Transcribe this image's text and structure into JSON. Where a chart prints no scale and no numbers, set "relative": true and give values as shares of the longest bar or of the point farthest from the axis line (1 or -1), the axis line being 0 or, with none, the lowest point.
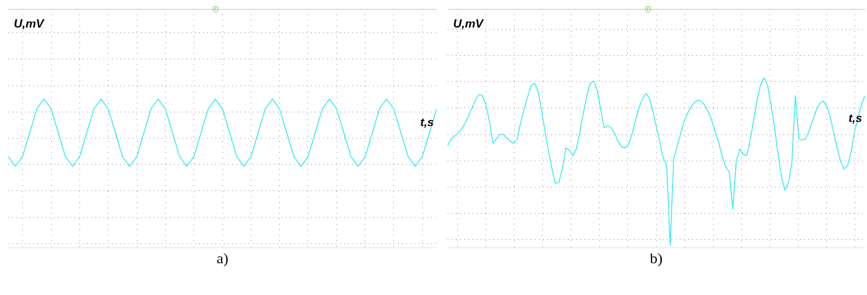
{
  "chart_data": [
    {
      "type": "line",
      "relative": true,
      "xlabel": "t,s",
      "ylabel": "U,mV",
      "annotations": [
        "a)"
      ],
      "grid": true,
      "legend": false,
      "marker": "none",
      "categories": [
        null,
        null,
        null,
        null,
        null,
        null,
        null,
        null,
        null,
        null,
        null,
        null,
        null,
        null,
        null,
        null,
        null,
        null,
        null,
        null,
        null,
        null,
        null,
        null,
        null,
        null,
        null,
        null,
        null,
        null,
        null,
        null,
        null,
        null,
        null,
        null,
        null,
        null,
        null,
        null,
        null,
        null,
        null,
        null,
        null,
        null,
        null,
        null,
        null,
        null,
        null,
        null,
        null,
        null,
        null,
        null,
        null,
        null,
        null,
        null,
        null
      ],
      "series": [
        {
          "color": "#33e8f2",
          "values": [
            -0.47,
            -0.72,
            -0.47,
            0.14,
            0.75,
            1,
            0.75,
            0.14,
            -0.47,
            -0.72,
            -0.47,
            0.14,
            0.75,
            1,
            0.75,
            0.14,
            -0.47,
            -0.72,
            -0.47,
            0.14,
            0.75,
            1,
            0.75,
            0.14,
            -0.47,
            -0.72,
            -0.47,
            0.14,
            0.75,
            1,
            0.75,
            0.14,
            -0.47,
            -0.72,
            -0.47,
            0.14,
            0.75,
            1,
            0.75,
            0.14,
            -0.47,
            -0.72,
            -0.47,
            0.14,
            0.75,
            1,
            0.75,
            0.14,
            -0.47,
            -0.72,
            -0.47,
            0.14,
            0.75,
            1,
            0.75,
            0.14,
            -0.47,
            -0.72,
            -0.47,
            0.14,
            0.75
          ]
        }
      ]
    },
    {
      "type": "line",
      "relative": true,
      "xlabel": "t,s",
      "ylabel": "U,mV",
      "annotations": [
        "b)"
      ],
      "grid": true,
      "legend": false,
      "marker": "none",
      "categories": [
        null,
        null,
        null,
        null,
        null,
        null,
        null,
        null,
        null,
        null,
        null,
        null,
        null,
        null,
        null,
        null,
        null,
        null,
        null,
        null,
        null,
        null,
        null,
        null,
        null,
        null,
        null,
        null,
        null,
        null,
        null,
        null,
        null,
        null,
        null,
        null,
        null,
        null,
        null,
        null,
        null,
        null,
        null,
        null,
        null,
        null,
        null,
        null,
        null,
        null,
        null,
        null,
        null,
        null,
        null,
        null,
        null,
        null,
        null,
        null,
        null,
        null,
        null,
        null,
        null,
        null,
        null,
        null,
        null,
        null,
        null,
        null,
        null,
        null,
        null,
        null,
        null,
        null,
        null,
        null,
        null,
        null,
        null,
        null,
        null,
        null,
        null,
        null,
        null,
        null,
        null,
        null,
        null,
        null,
        null,
        null,
        null,
        null,
        null,
        null,
        null,
        null,
        null,
        null,
        null,
        null,
        null,
        null,
        null,
        null,
        null,
        null,
        null,
        null,
        null,
        null,
        null,
        null,
        null,
        null,
        null
      ],
      "series": [
        {
          "color": "#33e8f2",
          "values": [
            -0.1,
            -0.04,
            -0.01,
            0.01,
            0.05,
            0.1,
            0.17,
            0.24,
            0.31,
            0.36,
            0.35,
            0.27,
            0.12,
            -0.08,
            -0.04,
            0.0,
            0.0,
            -0.03,
            -0.06,
            -0.08,
            -0.04,
            0.11,
            0.23,
            0.34,
            0.44,
            0.46,
            0.39,
            0.22,
            0.03,
            -0.15,
            -0.31,
            -0.44,
            -0.43,
            -0.31,
            -0.12,
            -0.14,
            -0.19,
            -0.13,
            0.02,
            0.19,
            0.35,
            0.46,
            0.48,
            0.4,
            0.23,
            0.06,
            0.08,
            0.06,
            0.01,
            -0.06,
            -0.11,
            -0.12,
            -0.09,
            0.0,
            0.13,
            0.24,
            0.32,
            0.37,
            0.33,
            0.21,
            0.07,
            -0.07,
            -0.21,
            -0.28,
            -1,
            -0.22,
            -0.11,
            0.01,
            0.12,
            0.19,
            0.25,
            0.29,
            0.31,
            0.3,
            0.26,
            0.2,
            0.12,
            0.02,
            -0.08,
            -0.2,
            -0.29,
            -0.34,
            -0.67,
            -0.24,
            -0.13,
            -0.18,
            -0.19,
            -0.05,
            0.13,
            0.31,
            0.45,
            0.51,
            0.44,
            0.27,
            0.06,
            -0.17,
            -0.38,
            -0.5,
            -0.44,
            -0.25,
            0.35,
            -0.04,
            -0.05,
            -0.04,
            0.04,
            0.13,
            0.22,
            0.28,
            0.3,
            0.26,
            0.16,
            0.02,
            -0.12,
            -0.24,
            -0.31,
            -0.28,
            -0.16,
            0.02,
            0.15,
            0.27,
            0.35
          ]
        }
      ]
    }
  ]
}
